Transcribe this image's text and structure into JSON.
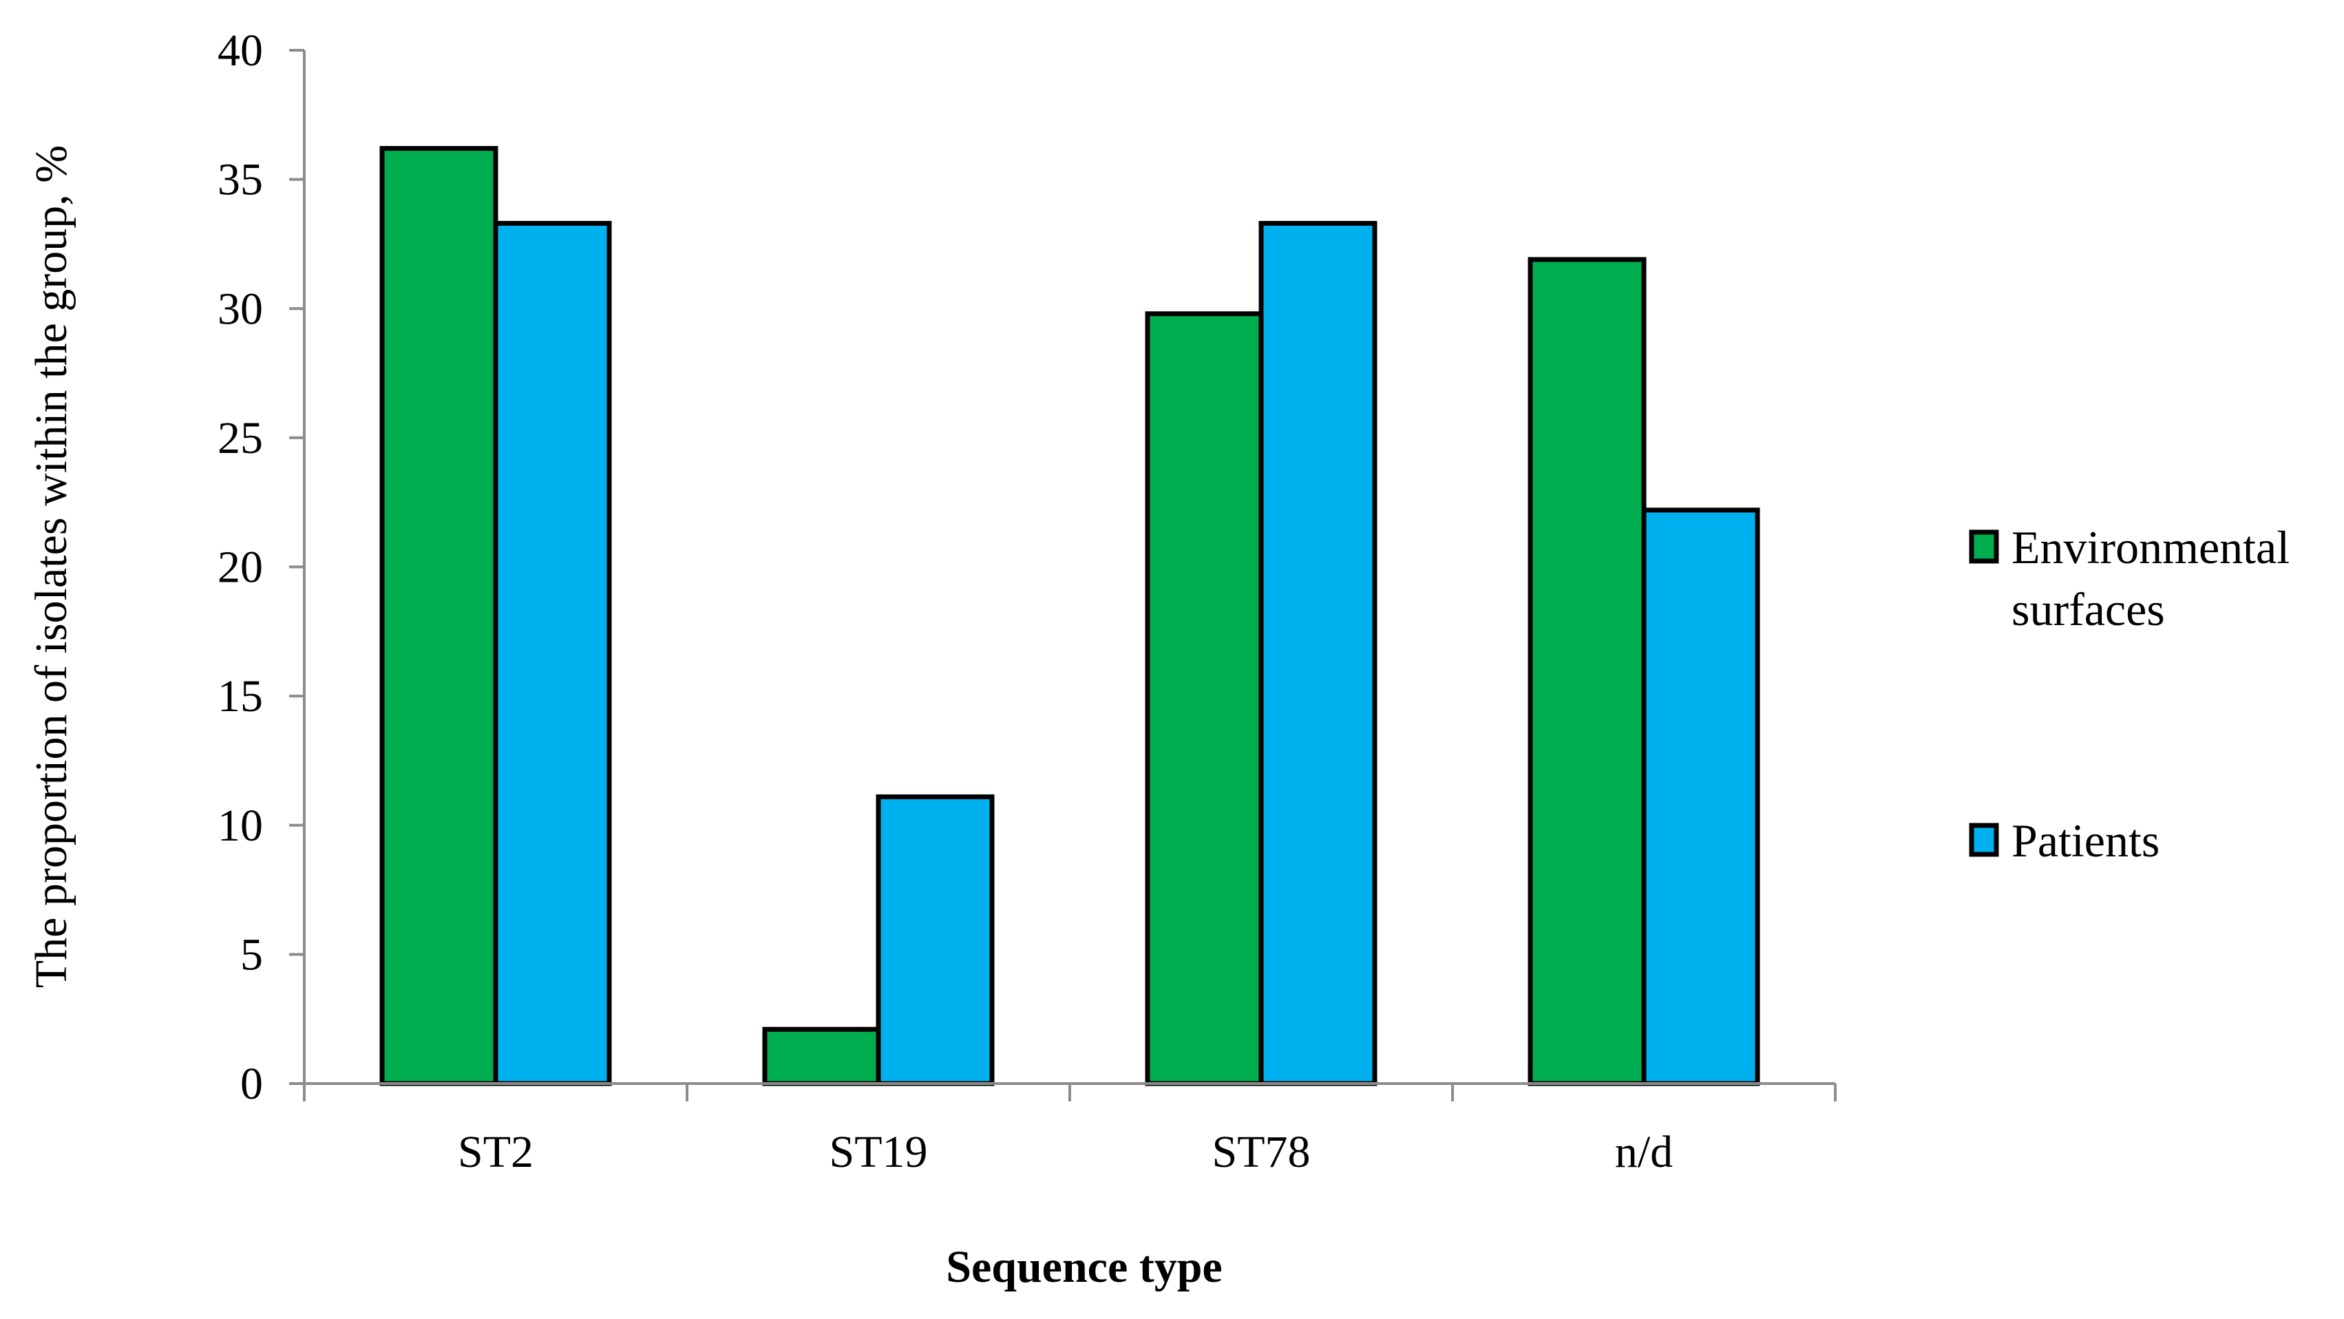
{
  "chart_data": {
    "type": "bar",
    "title": "",
    "xlabel": "Sequence type",
    "ylabel": "The proportion of isolates within the group, %",
    "categories": [
      "ST2",
      "ST19",
      "ST78",
      "n/d"
    ],
    "series": [
      {
        "name": "Environmental surfaces",
        "color": "#00AE4F",
        "values": [
          36.2,
          2.1,
          29.8,
          31.9
        ]
      },
      {
        "name": "Patients",
        "color": "#00B1F0",
        "values": [
          33.3,
          11.1,
          33.3,
          22.2
        ]
      }
    ],
    "ylim": [
      0,
      40
    ],
    "yticks": [
      0,
      5,
      10,
      15,
      20,
      25,
      30,
      35,
      40
    ],
    "grid": false,
    "legend_position": "right",
    "legend": [
      {
        "label_lines": [
          "Environmental",
          "surfaces"
        ],
        "color": "#00AE4F"
      },
      {
        "label_lines": [
          "Patients"
        ],
        "color": "#00B1F0"
      }
    ]
  }
}
